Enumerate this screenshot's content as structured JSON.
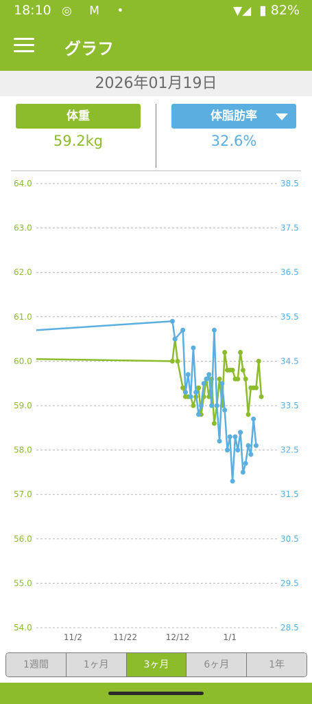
{
  "status_bar": {
    "time": "18:10",
    "left_icons": "◎ M •",
    "signal_icons": "▼◢",
    "battery_icon": "▮",
    "battery": "82%"
  },
  "app_bar": {
    "title": "グラフ",
    "menu_icon": "menu-icon"
  },
  "date": "2026年01月19日",
  "weight": {
    "label": "体重",
    "value": "59.2kg"
  },
  "fat": {
    "label": "体脂肪率",
    "value": "32.6%",
    "dropdown_icon": "chevron-down-icon"
  },
  "colors": {
    "weight": "#8cbb2c",
    "fat": "#5aaee0",
    "grid": "#b8b8b8"
  },
  "range_tabs": [
    {
      "label": "1週間",
      "active": false
    },
    {
      "label": "1ヶ月",
      "active": false
    },
    {
      "label": "3ヶ月",
      "active": true
    },
    {
      "label": "6ヶ月",
      "active": false
    },
    {
      "label": "1年",
      "active": false
    }
  ],
  "chart_data": {
    "type": "line",
    "x_ticks": [
      "11/2",
      "11/22",
      "12/12",
      "1/1"
    ],
    "x_tick_days": [
      14,
      34,
      54,
      74
    ],
    "xlim_days": [
      0,
      92
    ],
    "left_axis": {
      "ylim": [
        54.0,
        64.0
      ],
      "ticks": [
        "64.0",
        "63.0",
        "62.0",
        "61.0",
        "60.0",
        "59.0",
        "58.0",
        "57.0",
        "56.0",
        "55.0",
        "54.0"
      ]
    },
    "right_axis": {
      "ylim": [
        28.5,
        38.5
      ],
      "ticks": [
        "38.5",
        "37.5",
        "36.5",
        "35.5",
        "34.5",
        "33.5",
        "32.5",
        "31.5",
        "30.5",
        "29.5",
        "28.5"
      ]
    },
    "grid": true,
    "series": [
      {
        "axis": "left",
        "color": "#8cbb2c",
        "points": [
          [
            0,
            60.05
          ],
          [
            52,
            60.0
          ],
          [
            53,
            60.5
          ],
          [
            54,
            60.0
          ],
          [
            56,
            59.4
          ],
          [
            57,
            59.2
          ],
          [
            58,
            59.2
          ],
          [
            59,
            59.2
          ],
          [
            60,
            59.0
          ],
          [
            61,
            59.2
          ],
          [
            62,
            59.4
          ],
          [
            63,
            58.8
          ],
          [
            64,
            59.2
          ],
          [
            65,
            59.6
          ],
          [
            66,
            59.2
          ],
          [
            67,
            59.6
          ],
          [
            68,
            58.6
          ],
          [
            69,
            59.0
          ],
          [
            70,
            59.6
          ],
          [
            71,
            59.0
          ],
          [
            72,
            60.2
          ],
          [
            73,
            59.8
          ],
          [
            74,
            59.8
          ],
          [
            75,
            59.8
          ],
          [
            76,
            59.6
          ],
          [
            77,
            59.6
          ],
          [
            78,
            60.2
          ],
          [
            79,
            59.8
          ],
          [
            80,
            59.6
          ],
          [
            81,
            58.8
          ],
          [
            82,
            59.4
          ],
          [
            83,
            59.4
          ],
          [
            84,
            59.4
          ],
          [
            85,
            60.0
          ],
          [
            86,
            59.2
          ]
        ]
      },
      {
        "axis": "right",
        "color": "#5aaee0",
        "points": [
          [
            0,
            35.2
          ],
          [
            52,
            35.4
          ],
          [
            53,
            35.0
          ],
          [
            56,
            35.2
          ],
          [
            57,
            33.8
          ],
          [
            58,
            34.2
          ],
          [
            59,
            33.7
          ],
          [
            60,
            34.8
          ],
          [
            61,
            33.8
          ],
          [
            62,
            33.3
          ],
          [
            63,
            33.5
          ],
          [
            64,
            34.0
          ],
          [
            65,
            34.1
          ],
          [
            66,
            34.2
          ],
          [
            67,
            33.5
          ],
          [
            68,
            35.2
          ],
          [
            69,
            33.5
          ],
          [
            70,
            32.7
          ],
          [
            71,
            34.0
          ],
          [
            72,
            33.4
          ],
          [
            73,
            32.5
          ],
          [
            74,
            32.8
          ],
          [
            75,
            31.8
          ],
          [
            76,
            32.8
          ],
          [
            77,
            32.5
          ],
          [
            78,
            32.9
          ],
          [
            79,
            32.0
          ],
          [
            80,
            32.2
          ],
          [
            81,
            32.6
          ],
          [
            82,
            32.4
          ],
          [
            83,
            33.2
          ],
          [
            84,
            32.6
          ]
        ]
      }
    ]
  }
}
